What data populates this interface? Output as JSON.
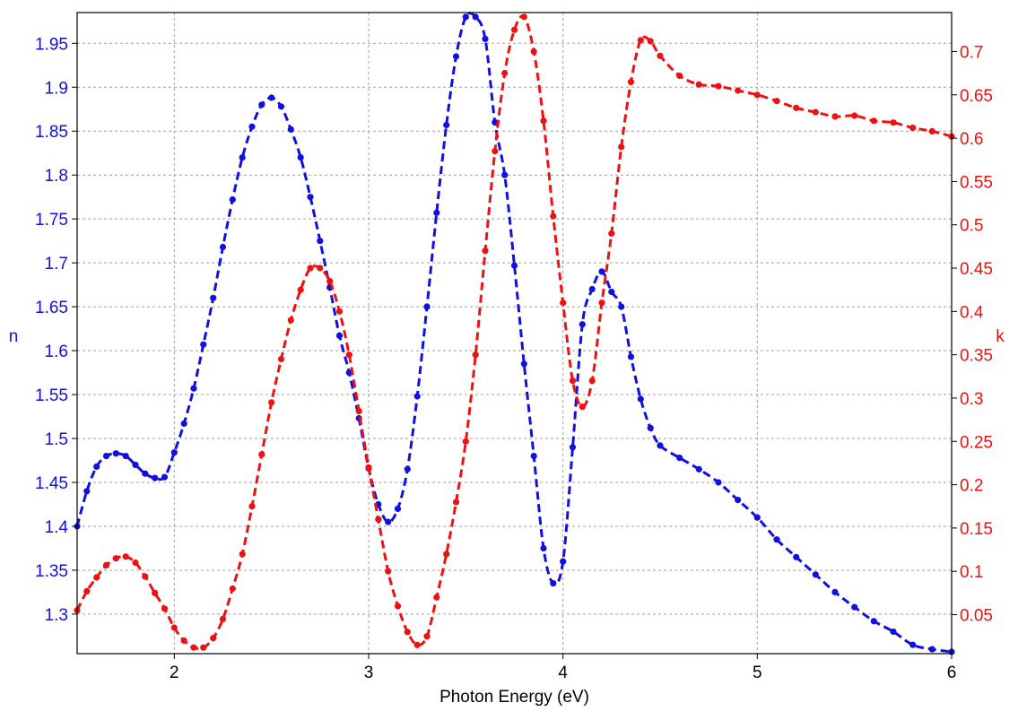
{
  "chart_data": {
    "type": "line",
    "title": "",
    "xlabel": "Photon Energy (eV)",
    "ylabel_left": "n",
    "ylabel_right": "k",
    "xlim": [
      1.5,
      6
    ],
    "ylim_left": [
      1.255,
      1.985
    ],
    "ylim_right": [
      0.005,
      0.745
    ],
    "grid": true,
    "x_ticks": [
      2,
      3,
      4,
      5,
      6
    ],
    "y_left_ticks": [
      1.3,
      1.35,
      1.4,
      1.45,
      1.5,
      1.55,
      1.6,
      1.65,
      1.7,
      1.75,
      1.8,
      1.85,
      1.9,
      1.95
    ],
    "y_right_ticks": [
      0.05,
      0.1,
      0.15,
      0.2,
      0.25,
      0.3,
      0.35,
      0.4,
      0.45,
      0.5,
      0.55,
      0.6,
      0.65,
      0.7
    ],
    "colors": {
      "n": "#1010e0",
      "k": "#ee1111",
      "grid": "#a0a0a0",
      "axis": "#000000"
    },
    "series": [
      {
        "axis": "left",
        "color": "#1010e0",
        "x": [
          1.5,
          1.55,
          1.6,
          1.65,
          1.7,
          1.75,
          1.8,
          1.85,
          1.9,
          1.95,
          2.0,
          2.05,
          2.1,
          2.15,
          2.2,
          2.25,
          2.3,
          2.35,
          2.4,
          2.45,
          2.5,
          2.55,
          2.6,
          2.65,
          2.7,
          2.75,
          2.8,
          2.85,
          2.9,
          2.95,
          3.0,
          3.05,
          3.1,
          3.15,
          3.2,
          3.25,
          3.3,
          3.35,
          3.4,
          3.45,
          3.5,
          3.55,
          3.6,
          3.65,
          3.7,
          3.75,
          3.8,
          3.85,
          3.9,
          3.95,
          4.0,
          4.05,
          4.1,
          4.15,
          4.2,
          4.25,
          4.3,
          4.35,
          4.4,
          4.45,
          4.5,
          4.6,
          4.7,
          4.8,
          4.9,
          5.0,
          5.1,
          5.2,
          5.3,
          5.4,
          5.5,
          5.6,
          5.7,
          5.8,
          5.9,
          6.0
        ],
        "values": [
          1.4,
          1.44,
          1.468,
          1.48,
          1.483,
          1.48,
          1.47,
          1.46,
          1.455,
          1.456,
          1.484,
          1.517,
          1.557,
          1.607,
          1.66,
          1.718,
          1.772,
          1.82,
          1.855,
          1.88,
          1.888,
          1.878,
          1.852,
          1.82,
          1.775,
          1.725,
          1.672,
          1.617,
          1.575,
          1.523,
          1.466,
          1.425,
          1.405,
          1.42,
          1.465,
          1.548,
          1.65,
          1.757,
          1.857,
          1.935,
          1.98,
          1.98,
          1.955,
          1.86,
          1.8,
          1.697,
          1.585,
          1.48,
          1.375,
          1.335,
          1.36,
          1.49,
          1.63,
          1.67,
          1.69,
          1.667,
          1.65,
          1.593,
          1.545,
          1.512,
          1.492,
          1.478,
          1.465,
          1.45,
          1.43,
          1.41,
          1.385,
          1.365,
          1.345,
          1.325,
          1.308,
          1.292,
          1.28,
          1.265,
          1.26,
          1.257
        ]
      },
      {
        "axis": "right",
        "color": "#ee1111",
        "x": [
          1.5,
          1.55,
          1.6,
          1.65,
          1.7,
          1.75,
          1.8,
          1.85,
          1.9,
          1.95,
          2.0,
          2.05,
          2.1,
          2.15,
          2.2,
          2.25,
          2.3,
          2.35,
          2.4,
          2.45,
          2.5,
          2.55,
          2.6,
          2.65,
          2.7,
          2.75,
          2.8,
          2.85,
          2.9,
          2.95,
          3.0,
          3.05,
          3.1,
          3.15,
          3.2,
          3.25,
          3.3,
          3.35,
          3.4,
          3.45,
          3.5,
          3.55,
          3.6,
          3.65,
          3.7,
          3.75,
          3.8,
          3.85,
          3.9,
          3.95,
          4.0,
          4.05,
          4.1,
          4.15,
          4.2,
          4.25,
          4.3,
          4.35,
          4.4,
          4.45,
          4.5,
          4.6,
          4.7,
          4.8,
          4.9,
          5.0,
          5.1,
          5.2,
          5.3,
          5.4,
          5.5,
          5.6,
          5.7,
          5.8,
          5.9,
          6.0
        ],
        "values": [
          0.055,
          0.077,
          0.093,
          0.107,
          0.115,
          0.117,
          0.11,
          0.094,
          0.075,
          0.057,
          0.035,
          0.02,
          0.012,
          0.012,
          0.023,
          0.045,
          0.08,
          0.12,
          0.175,
          0.235,
          0.295,
          0.345,
          0.39,
          0.425,
          0.45,
          0.45,
          0.435,
          0.4,
          0.35,
          0.285,
          0.22,
          0.16,
          0.1,
          0.06,
          0.03,
          0.015,
          0.025,
          0.07,
          0.12,
          0.18,
          0.25,
          0.35,
          0.47,
          0.585,
          0.675,
          0.725,
          0.74,
          0.7,
          0.62,
          0.51,
          0.41,
          0.32,
          0.29,
          0.32,
          0.41,
          0.49,
          0.59,
          0.665,
          0.713,
          0.712,
          0.695,
          0.672,
          0.662,
          0.66,
          0.655,
          0.65,
          0.643,
          0.635,
          0.63,
          0.625,
          0.626,
          0.62,
          0.618,
          0.612,
          0.608,
          0.602
        ]
      }
    ]
  }
}
